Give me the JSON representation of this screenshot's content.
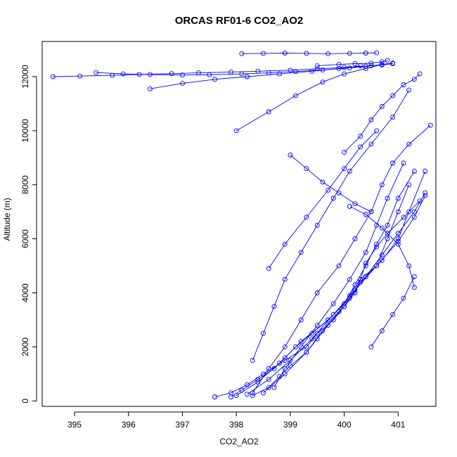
{
  "chart_data": {
    "type": "line",
    "title": "ORCAS RF01-6 CO2_AO2",
    "xlabel": "CO2_AO2",
    "ylabel": "Altitude (m)",
    "xlim": [
      394.4,
      401.7
    ],
    "ylim": [
      -200,
      13300
    ],
    "x_ticks": [
      395,
      396,
      397,
      398,
      399,
      400,
      401
    ],
    "y_ticks": [
      0,
      2000,
      4000,
      6000,
      8000,
      10000,
      12000
    ],
    "marker": "open-circle",
    "series_color": "#0000ff",
    "grid": false,
    "legend": "none",
    "series": [
      {
        "x": [
          397.6,
          397.9,
          398.2,
          398.5,
          398.9,
          399.3,
          399.5,
          399.8,
          400.0,
          400.2,
          400.3,
          400.6,
          400.8,
          401.0,
          401.2
        ],
        "y": [
          150,
          300,
          600,
          1000,
          1500,
          2000,
          2500,
          3000,
          3500,
          4000,
          4500,
          5000,
          6000,
          7000,
          8000
        ]
      },
      {
        "x": [
          401.3,
          401.0,
          400.8,
          400.6,
          400.4,
          400.2,
          400.0,
          399.7,
          399.4,
          399.1,
          398.9,
          398.7,
          398.4,
          398.1,
          397.9
        ],
        "y": [
          8500,
          7500,
          6500,
          5800,
          5000,
          4300,
          3600,
          3000,
          2500,
          2000,
          1600,
          1200,
          800,
          400,
          150
        ]
      },
      {
        "x": [
          398.0,
          398.4,
          398.8,
          399.2,
          399.7,
          400.1,
          400.4,
          400.7,
          401.0,
          401.3,
          401.5
        ],
        "y": [
          200,
          700,
          1400,
          2200,
          3000,
          3800,
          4600,
          5400,
          6200,
          7000,
          7700
        ]
      },
      {
        "x": [
          401.4,
          401.1,
          400.8,
          400.6,
          400.4,
          400.3,
          400.1,
          399.9,
          399.7,
          399.5,
          399.3,
          399.0,
          398.8,
          398.6,
          398.3
        ],
        "y": [
          7400,
          6800,
          6200,
          5700,
          5100,
          4500,
          3900,
          3300,
          2800,
          2300,
          1800,
          1300,
          900,
          500,
          200
        ]
      },
      {
        "x": [
          398.5,
          398.9,
          399.3,
          399.6,
          400.0,
          400.3,
          400.7,
          401.0,
          401.2,
          401.5
        ],
        "y": [
          300,
          1000,
          1800,
          2600,
          3500,
          4400,
          5200,
          6000,
          7000,
          8500
        ]
      },
      {
        "x": [
          401.6,
          401.2,
          400.9,
          400.7,
          400.5,
          400.2,
          399.9,
          399.5,
          399.2,
          398.9,
          398.6,
          398.3
        ],
        "y": [
          10200,
          9500,
          8800,
          8000,
          7000,
          6000,
          5000,
          4000,
          3000,
          2000,
          1200,
          300
        ]
      },
      {
        "x": [
          398.2,
          398.6,
          399.0,
          399.4,
          399.8,
          400.2,
          400.6,
          401.0,
          401.3,
          401.5
        ],
        "y": [
          250,
          800,
          1500,
          2300,
          3200,
          4100,
          5000,
          5900,
          6800,
          7600
        ]
      },
      {
        "x": [
          401.2,
          400.9,
          400.5,
          400.1,
          399.8,
          399.5,
          399.2,
          398.9,
          398.7,
          398.5,
          398.3
        ],
        "y": [
          11500,
          10500,
          9500,
          8500,
          7500,
          6500,
          5500,
          4500,
          3500,
          2500,
          1500
        ]
      },
      {
        "x": [
          398.7,
          398.9,
          399.2,
          399.5,
          399.8,
          400.1,
          400.4,
          400.6,
          400.8,
          401.1
        ],
        "y": [
          500,
          1200,
          2000,
          2800,
          3600,
          4500,
          5500,
          6500,
          7500,
          8800
        ]
      },
      {
        "x": [
          400.0,
          400.3,
          400.5,
          400.7,
          400.9,
          401.1,
          401.3,
          401.4
        ],
        "y": [
          9200,
          9800,
          10400,
          10900,
          11300,
          11700,
          11900,
          12100
        ]
      },
      {
        "x": [
          398.6,
          398.9,
          399.3,
          399.7,
          400.0,
          400.3,
          400.6
        ],
        "y": [
          4900,
          5800,
          6800,
          7800,
          8600,
          9400,
          10000
        ]
      },
      {
        "x": [
          398.0,
          398.6,
          399.1,
          399.6,
          400.0,
          400.4,
          400.7
        ],
        "y": [
          10000,
          10700,
          11300,
          11800,
          12100,
          12300,
          12450
        ]
      },
      {
        "x": [
          394.6,
          395.1,
          395.7,
          396.2,
          396.8,
          397.3,
          397.9,
          398.4,
          399.0,
          399.5,
          400.0,
          400.4,
          400.7,
          400.9
        ],
        "y": [
          12000,
          12020,
          12050,
          12080,
          12110,
          12140,
          12170,
          12200,
          12240,
          12290,
          12340,
          12390,
          12430,
          12480
        ]
      },
      {
        "x": [
          395.4,
          395.9,
          396.4,
          397.0,
          397.5,
          398.1,
          398.6,
          399.1,
          399.6,
          400.1,
          400.5,
          400.9
        ],
        "y": [
          12150,
          12100,
          12080,
          12060,
          12070,
          12100,
          12140,
          12190,
          12250,
          12320,
          12400,
          12500
        ]
      },
      {
        "x": [
          398.1,
          398.5,
          398.9,
          399.3,
          399.7,
          400.1,
          400.4,
          400.6
        ],
        "y": [
          12850,
          12860,
          12870,
          12860,
          12850,
          12860,
          12870,
          12880
        ]
      },
      {
        "x": [
          396.4,
          397.0,
          397.6,
          398.2,
          398.8,
          399.4,
          399.9,
          400.3
        ],
        "y": [
          11550,
          11750,
          11900,
          12000,
          12100,
          12200,
          12300,
          12400
        ]
      },
      {
        "x": [
          399.5,
          399.9,
          400.2,
          400.5,
          400.7,
          400.8
        ],
        "y": [
          12400,
          12450,
          12480,
          12500,
          12550,
          12600
        ]
      },
      {
        "x": [
          400.1,
          400.4,
          400.7,
          401.0,
          401.2,
          401.3
        ],
        "y": [
          7200,
          6900,
          6400,
          5800,
          5000,
          4200
        ]
      },
      {
        "x": [
          399.0,
          399.3,
          399.6,
          399.9,
          400.2,
          400.5
        ],
        "y": [
          9100,
          8600,
          8100,
          7700,
          7300,
          7000
        ]
      },
      {
        "x": [
          400.5,
          400.7,
          400.9,
          401.1,
          401.3
        ],
        "y": [
          2000,
          2600,
          3200,
          3800,
          4600
        ]
      }
    ]
  }
}
